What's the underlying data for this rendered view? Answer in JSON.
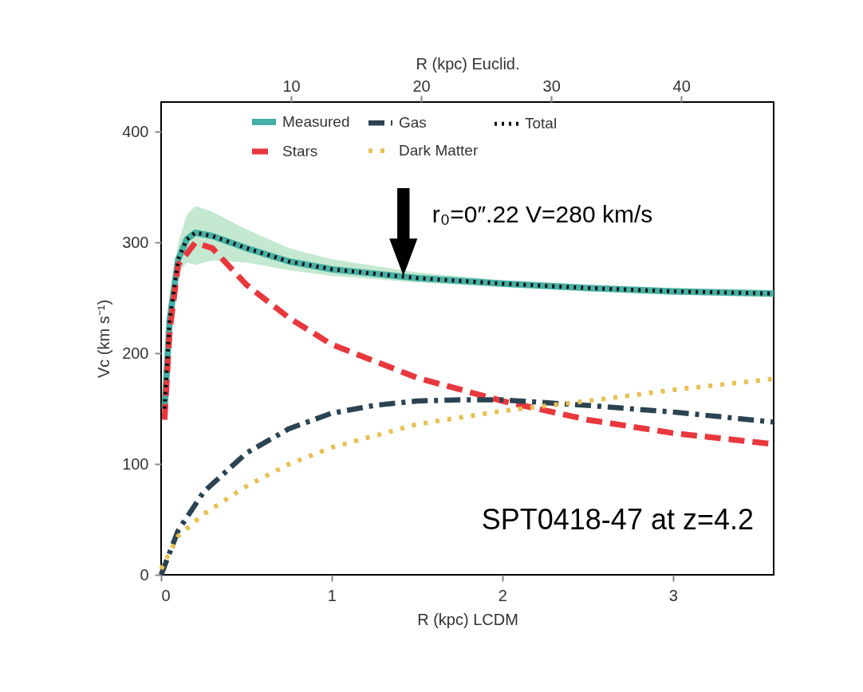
{
  "chart_data": {
    "type": "line",
    "xlabel": "R (kpc)  LCDM",
    "ylabel": "Vc (km s⁻¹)",
    "x2label": "R (kpc) Euclid.",
    "xlim": [
      0,
      3.59
    ],
    "xticks": [
      0,
      1,
      2,
      3
    ],
    "ylim": [
      0,
      427
    ],
    "yticks": [
      0,
      100,
      200,
      300,
      400
    ],
    "x2lim": [
      0,
      47.1
    ],
    "x2ticks": [
      10,
      20,
      30,
      40
    ],
    "grid": false,
    "legend": "top",
    "marker": "none",
    "series": [
      {
        "name": "Measured",
        "color": "#45b0a5",
        "line_style": "solid",
        "x": [
          0.02,
          0.05,
          0.1,
          0.15,
          0.2,
          0.3,
          0.5,
          0.75,
          1.0,
          1.5,
          2.0,
          2.5,
          3.0,
          3.59
        ],
        "values": [
          150,
          230,
          285,
          303,
          309,
          306,
          295,
          283,
          276,
          268,
          263,
          259,
          256,
          254
        ],
        "lower": [
          145,
          220,
          272,
          282,
          280,
          284,
          282,
          275,
          270,
          264,
          260,
          256,
          253,
          251
        ],
        "upper": [
          155,
          240,
          300,
          325,
          333,
          328,
          312,
          295,
          285,
          273,
          266,
          262,
          259,
          257
        ]
      },
      {
        "name": "Stars",
        "color": "#e8383d",
        "line_style": "dashed",
        "x": [
          0.02,
          0.05,
          0.1,
          0.2,
          0.3,
          0.5,
          0.75,
          1.0,
          1.5,
          2.0,
          2.5,
          3.0,
          3.59
        ],
        "values": [
          140,
          220,
          280,
          300,
          295,
          262,
          232,
          208,
          178,
          157,
          140,
          128,
          118
        ]
      },
      {
        "name": "Gas",
        "color": "#2b4352",
        "line_style": "dashdot",
        "x": [
          0,
          0.1,
          0.25,
          0.5,
          0.75,
          1.0,
          1.25,
          1.5,
          1.75,
          2.0,
          2.5,
          3.0,
          3.59
        ],
        "values": [
          0,
          40,
          75,
          110,
          132,
          146,
          153,
          157,
          158,
          158,
          153,
          147,
          138
        ]
      },
      {
        "name": "Dark Matter",
        "color": "#e8c052",
        "line_style": "dotted",
        "x": [
          0,
          0.1,
          0.25,
          0.5,
          0.75,
          1.0,
          1.5,
          2.0,
          2.5,
          3.0,
          3.59
        ],
        "values": [
          5,
          35,
          55,
          80,
          100,
          115,
          136,
          148,
          157,
          167,
          177
        ]
      },
      {
        "name": "Total",
        "color": "#111111",
        "line_style": "dotted",
        "x": [
          0.02,
          0.05,
          0.1,
          0.15,
          0.2,
          0.3,
          0.5,
          0.75,
          1.0,
          1.5,
          2.0,
          2.5,
          3.0,
          3.59
        ],
        "values": [
          150,
          230,
          285,
          303,
          309,
          306,
          295,
          283,
          276,
          268,
          263,
          259,
          256,
          254
        ]
      }
    ],
    "annotations": [
      {
        "text": "r₀=0″.22 V=280 km/s",
        "x": 1.42,
        "y": 270
      },
      "SPT0418-47 at z=4.2"
    ]
  }
}
